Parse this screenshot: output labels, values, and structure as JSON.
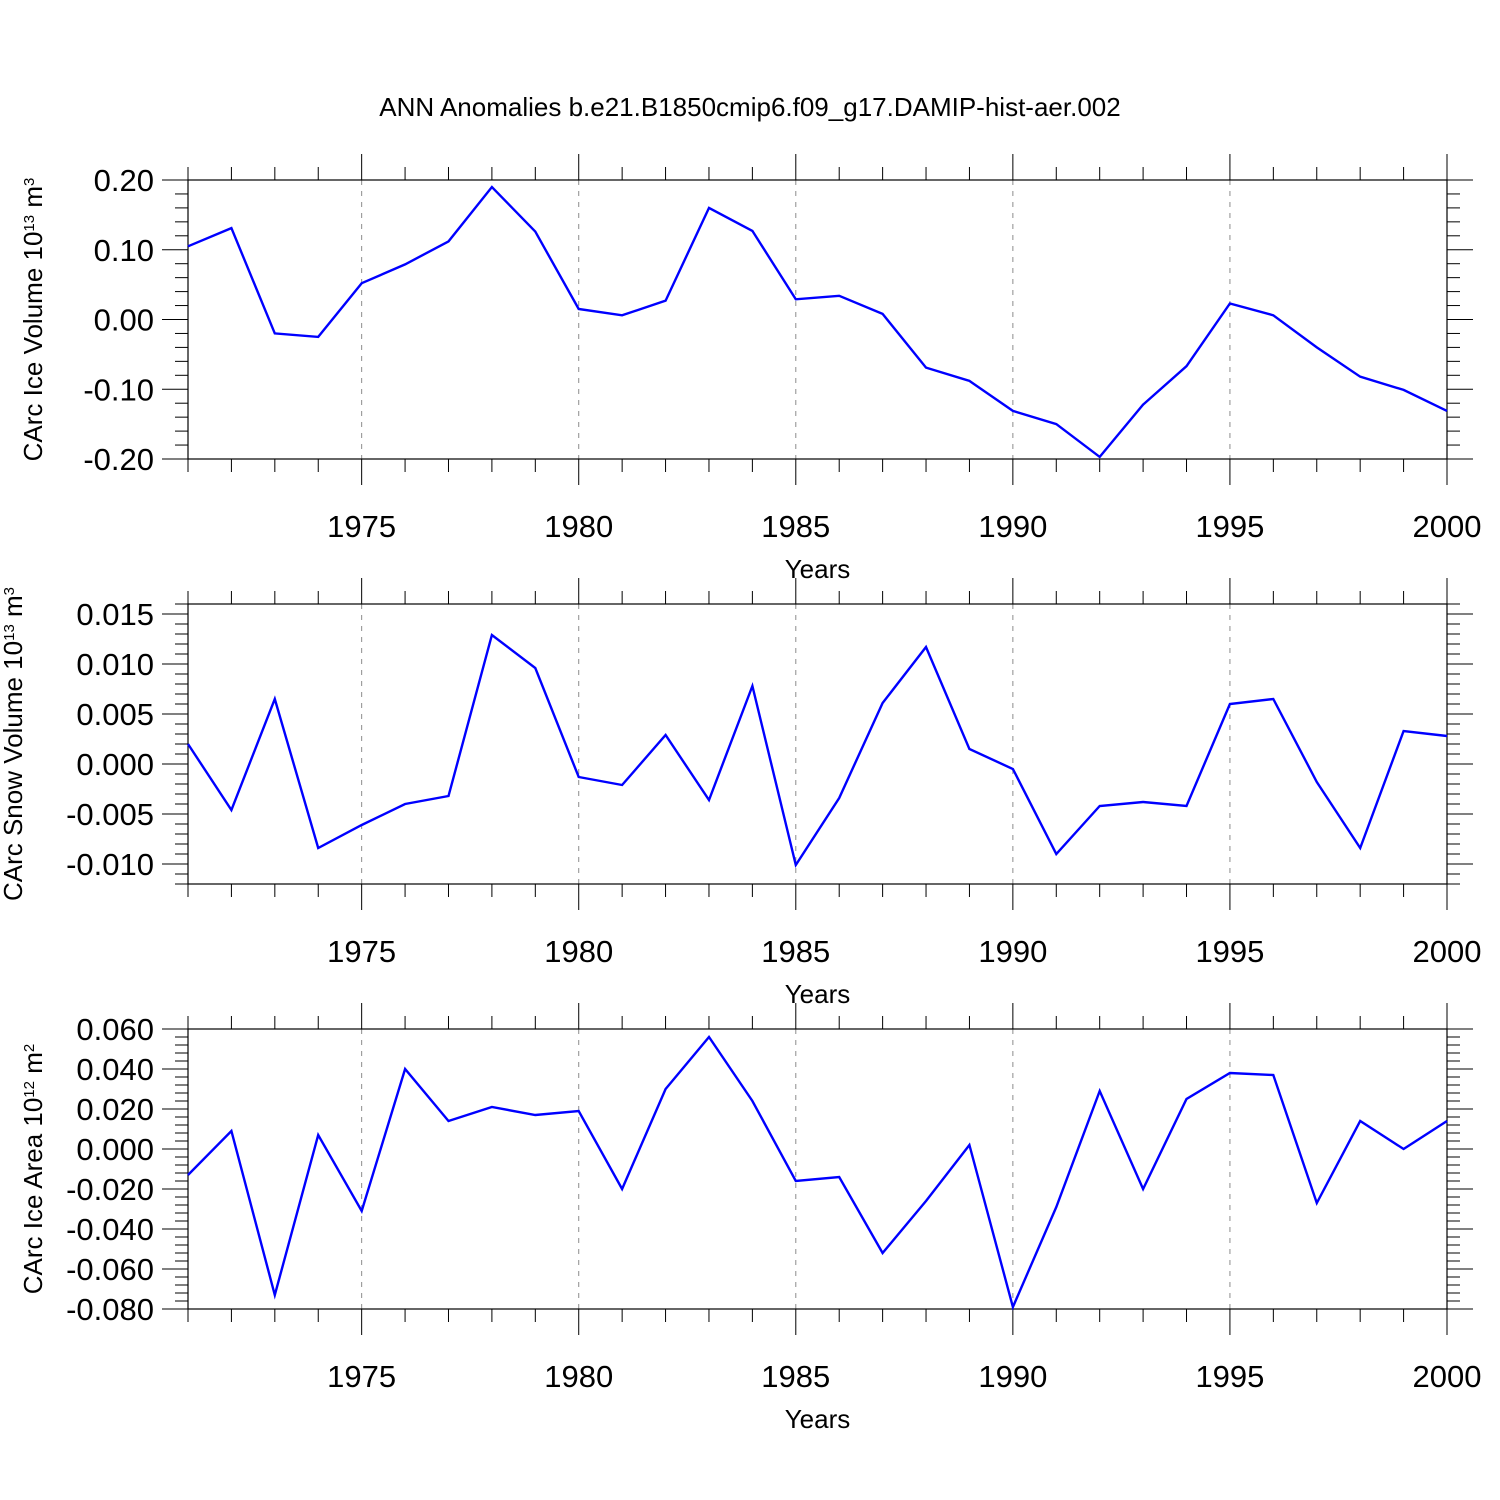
{
  "title": "ANN Anomalies b.e21.B1850cmip6.f09_g17.DAMIP-hist-aer.002",
  "colors": {
    "line": "#0000ff",
    "axis": "#000000",
    "grid": "#8c8c8c"
  },
  "chart_data": [
    {
      "type": "line",
      "title": "",
      "xlabel": "Years",
      "ylabel_main": "CArc Ice Volume 10",
      "ylabel_sup": "13",
      "ylabel_unit": " m",
      "ylabel_unit_sup": "3",
      "xlim": [
        1971,
        2000
      ],
      "ylim": [
        -0.2,
        0.2
      ],
      "x_ticks": [
        "1975",
        "1980",
        "1985",
        "1990",
        "1995",
        "2000"
      ],
      "y_ticks": [
        "0.20",
        "0.10",
        "0.00",
        "-0.10",
        "-0.20"
      ],
      "y_tick_values": [
        0.2,
        0.1,
        0.0,
        -0.1,
        -0.2
      ],
      "grid": "dashed vertical at 5-year marks",
      "x": [
        1971,
        1972,
        1973,
        1974,
        1975,
        1976,
        1977,
        1978,
        1979,
        1980,
        1981,
        1982,
        1983,
        1984,
        1985,
        1986,
        1987,
        1988,
        1989,
        1990,
        1991,
        1992,
        1993,
        1994,
        1995,
        1996,
        1997,
        1998,
        1999,
        2000
      ],
      "y": [
        0.105,
        0.131,
        -0.02,
        -0.025,
        0.052,
        0.079,
        0.112,
        0.19,
        0.126,
        0.015,
        0.006,
        0.027,
        0.16,
        0.127,
        0.029,
        0.034,
        0.008,
        -0.069,
        -0.088,
        -0.131,
        -0.15,
        -0.197,
        -0.122,
        -0.067,
        0.023,
        0.006,
        -0.04,
        -0.082,
        -0.101,
        -0.131
      ]
    },
    {
      "type": "line",
      "title": "",
      "xlabel": "Years",
      "ylabel_main": "CArc Snow Volume 10",
      "ylabel_sup": "13",
      "ylabel_unit": " m",
      "ylabel_unit_sup": "3",
      "xlim": [
        1971,
        2000
      ],
      "ylim": [
        -0.012,
        0.016
      ],
      "x_ticks": [
        "1975",
        "1980",
        "1985",
        "1990",
        "1995",
        "2000"
      ],
      "y_ticks": [
        "0.015",
        "0.010",
        "0.005",
        "0.000",
        "-0.005",
        "-0.010"
      ],
      "y_tick_values": [
        0.015,
        0.01,
        0.005,
        0.0,
        -0.005,
        -0.01
      ],
      "grid": "dashed vertical at 5-year marks",
      "x": [
        1971,
        1972,
        1973,
        1974,
        1975,
        1976,
        1977,
        1978,
        1979,
        1980,
        1981,
        1982,
        1983,
        1984,
        1985,
        1986,
        1987,
        1988,
        1989,
        1990,
        1991,
        1992,
        1993,
        1994,
        1995,
        1996,
        1997,
        1998,
        1999,
        2000
      ],
      "y": [
        0.002,
        -0.0046,
        0.0065,
        -0.0084,
        -0.0061,
        -0.004,
        -0.0032,
        0.0129,
        0.0096,
        -0.0013,
        -0.0021,
        0.0029,
        -0.0036,
        0.0078,
        -0.0101,
        -0.0034,
        0.0061,
        0.0117,
        0.0015,
        -0.0005,
        -0.009,
        -0.0042,
        -0.0038,
        -0.0042,
        0.006,
        0.0065,
        -0.0018,
        -0.0084,
        0.0033,
        0.0028
      ]
    },
    {
      "type": "line",
      "title": "",
      "xlabel": "Years",
      "ylabel_main": "CArc Ice Area 10",
      "ylabel_sup": "12",
      "ylabel_unit": " m",
      "ylabel_unit_sup": "2",
      "xlim": [
        1971,
        2000
      ],
      "ylim": [
        -0.08,
        0.06
      ],
      "x_ticks": [
        "1975",
        "1980",
        "1985",
        "1990",
        "1995",
        "2000"
      ],
      "y_ticks": [
        "0.060",
        "0.040",
        "0.020",
        "0.000",
        "-0.020",
        "-0.040",
        "-0.060",
        "-0.080"
      ],
      "y_tick_values": [
        0.06,
        0.04,
        0.02,
        0.0,
        -0.02,
        -0.04,
        -0.06,
        -0.08
      ],
      "grid": "dashed vertical at 5-year marks",
      "x": [
        1971,
        1972,
        1973,
        1974,
        1975,
        1976,
        1977,
        1978,
        1979,
        1980,
        1981,
        1982,
        1983,
        1984,
        1985,
        1986,
        1987,
        1988,
        1989,
        1990,
        1991,
        1992,
        1993,
        1994,
        1995,
        1996,
        1997,
        1998,
        1999,
        2000
      ],
      "y": [
        -0.013,
        0.009,
        -0.073,
        0.007,
        -0.031,
        0.04,
        0.014,
        0.021,
        0.017,
        0.019,
        -0.02,
        0.03,
        0.056,
        0.024,
        -0.016,
        -0.014,
        -0.052,
        -0.026,
        0.002,
        -0.079,
        -0.029,
        0.029,
        -0.02,
        0.025,
        0.038,
        0.037,
        -0.027,
        0.014,
        -0.0,
        0.014
      ]
    }
  ]
}
